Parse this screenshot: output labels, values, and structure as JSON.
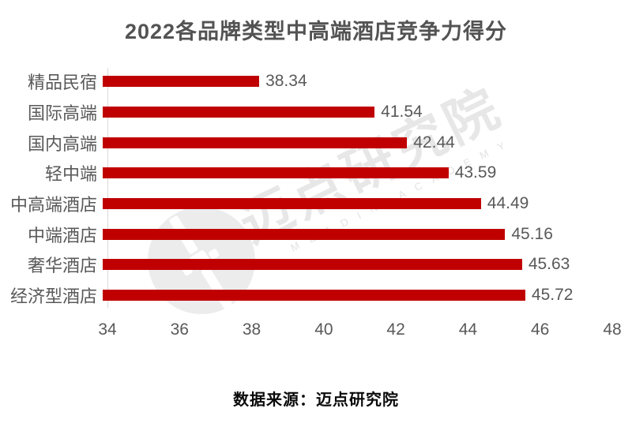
{
  "title": "2022各品牌类型中高端酒店竞争力得分",
  "source": "数据来源：迈点研究院",
  "watermark": {
    "cn": "迈点研究院",
    "en": "MEADIN ACADEMY"
  },
  "colors": {
    "bar": "#c00000",
    "title_text": "#535353",
    "label_text": "#595959",
    "axis_line": "#d9d9d9",
    "source_text": "#0a0a0a",
    "watermark": "#e7e7e7"
  },
  "chart_data": {
    "type": "bar",
    "orientation": "horizontal",
    "title": "2022各品牌类型中高端酒店竞争力得分",
    "categories": [
      "精品民宿",
      "国际高端",
      "国内高端",
      "轻中端",
      "中高端酒店",
      "中端酒店",
      "奢华酒店",
      "经济型酒店"
    ],
    "values": [
      38.34,
      41.54,
      42.44,
      43.59,
      44.49,
      45.16,
      45.63,
      45.72
    ],
    "value_labels": [
      "38.34",
      "41.54",
      "42.44",
      "43.59",
      "44.49",
      "45.16",
      "45.63",
      "45.72"
    ],
    "xlim": [
      34,
      48
    ],
    "xticks": [
      34,
      36,
      38,
      40,
      42,
      44,
      46,
      48
    ],
    "grid": false,
    "legend": "none",
    "data_labels": "outside-end"
  }
}
